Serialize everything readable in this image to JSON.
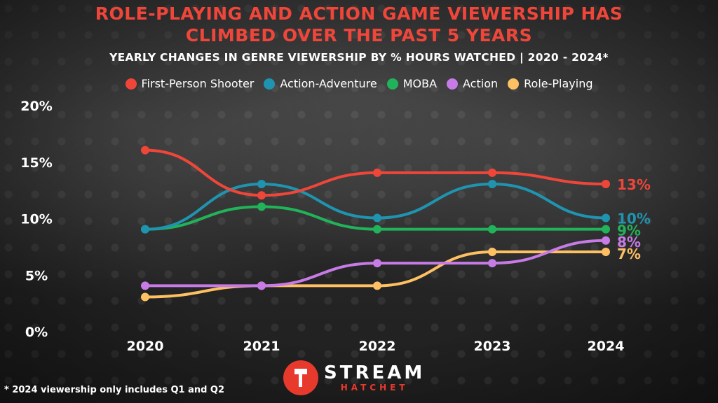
{
  "title": "ROLE-PLAYING AND ACTION GAME VIEWERSHIP HAS\nCLIMBED OVER THE PAST 5 YEARS",
  "subtitle": "YEARLY CHANGES IN GENRE VIEWERSHIP BY % HOURS WATCHED | 2020 - 2024*",
  "footnote": "* 2024 viewership only includes Q1 and Q2",
  "logo": {
    "top": "STREAM",
    "bottom": "HATCHET"
  },
  "chart_data": {
    "type": "line",
    "title": "ROLE-PLAYING AND ACTION GAME VIEWERSHIP HAS CLIMBED OVER THE PAST 5 YEARS",
    "subtitle": "YEARLY CHANGES IN GENRE VIEWERSHIP BY % HOURS WATCHED | 2020 - 2024*",
    "x": [
      "2020",
      "2021",
      "2022",
      "2023",
      "2024"
    ],
    "ylim": [
      0,
      20
    ],
    "yticks": [
      0,
      5,
      10,
      15,
      20
    ],
    "ytick_labels": [
      "0%",
      "5%",
      "10%",
      "15%",
      "20%"
    ],
    "grid": false,
    "legend_position": "top-center",
    "series": [
      {
        "name": "First-Person Shooter",
        "color": "#f0463a",
        "values": [
          16,
          12,
          14,
          14,
          13
        ],
        "end_label": "13%"
      },
      {
        "name": "Action-Adventure",
        "color": "#1f94b0",
        "values": [
          9,
          13,
          10,
          13,
          10
        ],
        "end_label": "10%"
      },
      {
        "name": "MOBA",
        "color": "#21b35a",
        "values": [
          9,
          11,
          9,
          9,
          9
        ],
        "end_label": "9%"
      },
      {
        "name": "Action",
        "color": "#c77be6",
        "values": [
          4,
          4,
          6,
          6,
          8
        ],
        "end_label": "8%"
      },
      {
        "name": "Role-Playing",
        "color": "#fdc063",
        "values": [
          3,
          4,
          4,
          7,
          7
        ],
        "end_label": "7%"
      }
    ]
  }
}
